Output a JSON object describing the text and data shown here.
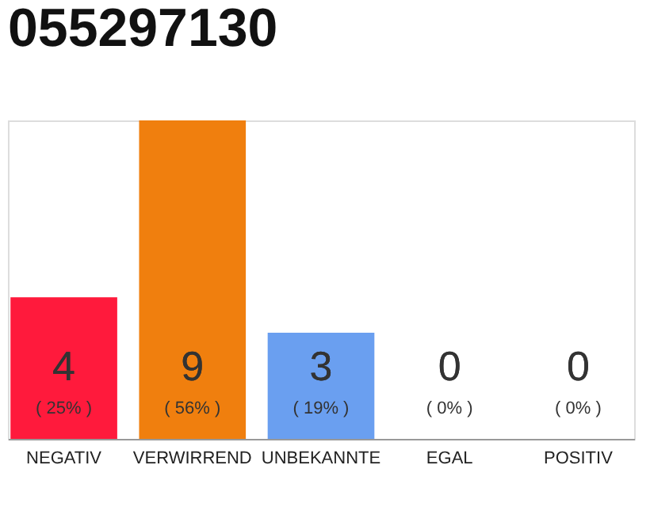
{
  "chart_data": {
    "type": "bar",
    "title": "055297130",
    "categories": [
      "NEGATIV",
      "VERWIRREND",
      "UNBEKANNTE",
      "EGAL",
      "POSITIV"
    ],
    "values": [
      4,
      9,
      3,
      0,
      0
    ],
    "colors": [
      "#ff1a3c",
      "#f07f0e",
      "#6a9ff0",
      "#cccccc",
      "#cccccc"
    ],
    "tick_labels": "x",
    "grid": false,
    "legend": false,
    "data_labels": true,
    "annotations": [
      "( 25% )",
      "( 56% )",
      "( 19% )",
      "( 0% )",
      "( 0% )"
    ]
  }
}
